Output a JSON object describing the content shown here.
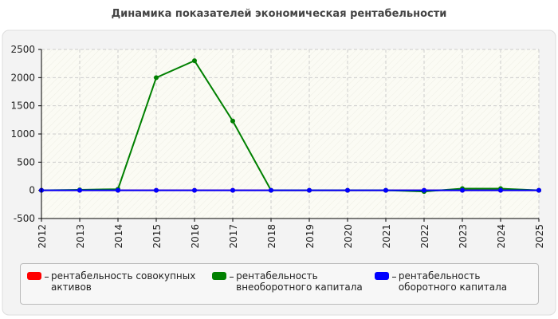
{
  "chart_data": {
    "type": "line",
    "title": "Динамика показателей экономическая рентабельности",
    "categories": [
      "2012",
      "2013",
      "2014",
      "2015",
      "2016",
      "2017",
      "2018",
      "2019",
      "2020",
      "2021",
      "2022",
      "2023",
      "2024",
      "2025"
    ],
    "series": [
      {
        "name": "рентабельность совокупных активов",
        "color": "#ff0000",
        "values": [
          0,
          0,
          0,
          0,
          0,
          0,
          0,
          0,
          0,
          0,
          0,
          0,
          0,
          0
        ]
      },
      {
        "name": "рентабельность внеоборотного капитала",
        "color": "#008000",
        "values": [
          0,
          10,
          20,
          2000,
          2300,
          1230,
          0,
          0,
          0,
          0,
          -20,
          30,
          30,
          0
        ]
      },
      {
        "name": "рентабельность оборотного капитала",
        "color": "#0000ff",
        "values": [
          0,
          0,
          0,
          0,
          0,
          0,
          0,
          0,
          0,
          0,
          0,
          0,
          0,
          0
        ]
      }
    ],
    "ylim": [
      -500,
      2500
    ],
    "yticks": [
      -500,
      0,
      500,
      1000,
      1500,
      2000,
      2500
    ],
    "grid": true
  }
}
